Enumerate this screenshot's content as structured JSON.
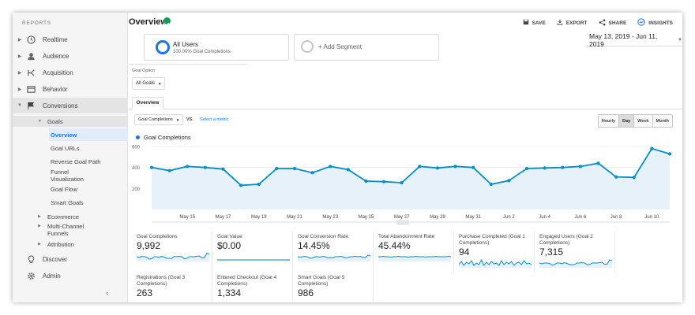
{
  "sidebar": {
    "heading": "REPORTS",
    "nav": [
      {
        "label": "Realtime",
        "icon": "clock-icon"
      },
      {
        "label": "Audience",
        "icon": "person-icon"
      },
      {
        "label": "Acquisition",
        "icon": "fork-icon"
      },
      {
        "label": "Behavior",
        "icon": "window-icon"
      },
      {
        "label": "Conversions",
        "icon": "flag-icon"
      }
    ],
    "goals": {
      "label": "Goals",
      "items": [
        "Overview",
        "Goal URLs",
        "Reverse Goal Path",
        "Funnel Visualization",
        "Goal Flow",
        "Smart Goals"
      ]
    },
    "subgroups": [
      "Ecommerce",
      "Multi-Channel Funnels",
      "Attribution"
    ],
    "bottom": [
      {
        "label": "Discover",
        "icon": "lightbulb-icon"
      },
      {
        "label": "Admin",
        "icon": "gear-icon"
      }
    ],
    "collapse": "‹"
  },
  "header": {
    "title": "Overview",
    "actions": [
      "SAVE",
      "EXPORT",
      "SHARE",
      "INSIGHTS"
    ]
  },
  "segments": {
    "active_title": "All Users",
    "active_sub": "100.00% Goal Completions",
    "add": "+ Add Segment"
  },
  "date_range": "May 13, 2019 - Jun 11, 2019",
  "goal_option": {
    "label": "Goal Option:",
    "value": "All Goals"
  },
  "tab": "Overview",
  "controls": {
    "metric": "Goal Completions",
    "vs": "VS.",
    "select_metric": "Select a metric",
    "granularity": [
      "Hourly",
      "Day",
      "Week",
      "Month"
    ],
    "selected_granularity": "Day"
  },
  "colors": {
    "accent": "#1a73e8",
    "line": "#058dc7",
    "fill": "#e6f1f9",
    "ok": "#0f9d58"
  },
  "chart_data": {
    "type": "area",
    "series": [
      {
        "name": "Goal Completions",
        "values": [
          400,
          370,
          410,
          400,
          385,
          230,
          240,
          390,
          390,
          350,
          410,
          380,
          270,
          265,
          255,
          410,
          395,
          410,
          400,
          240,
          275,
          390,
          395,
          400,
          410,
          440,
          310,
          305,
          580,
          530
        ]
      }
    ],
    "x_tick_labels": [
      "May 15",
      "May 17",
      "May 19",
      "May 21",
      "May 23",
      "May 25",
      "May 27",
      "May 29",
      "May 31",
      "Jun 2",
      "Jun 4",
      "Jun 6",
      "Jun 8",
      "Jun 10"
    ],
    "y_ticks": [
      200,
      400,
      600
    ],
    "ylim": [
      0,
      600
    ],
    "grid": true
  },
  "scorecards": [
    {
      "name": "Goal Completions",
      "value": "9,992",
      "spark": [
        0.5,
        0.4,
        0.55,
        0.5,
        0.45,
        0.2,
        0.25,
        0.5,
        0.5,
        0.4,
        0.55,
        0.45,
        0.3,
        0.3,
        0.28,
        0.55,
        0.5,
        0.55,
        0.5,
        0.25,
        0.3,
        0.5,
        0.5,
        0.5,
        0.55,
        0.6,
        0.35,
        0.35,
        0.95,
        0.85
      ]
    },
    {
      "name": "Goal Value",
      "value": "$0.00",
      "spark": [
        0.1,
        0.1,
        0.1,
        0.1,
        0.1,
        0.1,
        0.1,
        0.1,
        0.1,
        0.1
      ]
    },
    {
      "name": "Goal Conversion Rate",
      "value": "14.45%",
      "spark": [
        0.5,
        0.45,
        0.5,
        0.55,
        0.45,
        0.3,
        0.35,
        0.5,
        0.5,
        0.45,
        0.55,
        0.5,
        0.35,
        0.4,
        0.35,
        0.5,
        0.5,
        0.55,
        0.5,
        0.35,
        0.4,
        0.5,
        0.5,
        0.55,
        0.5,
        0.55,
        0.4,
        0.4,
        0.7,
        0.65
      ]
    },
    {
      "name": "Total Abandonment Rate",
      "value": "45.44%",
      "spark": [
        0.5,
        0.5,
        0.55,
        0.5,
        0.5,
        0.45,
        0.5,
        0.5,
        0.55,
        0.5,
        0.5,
        0.5,
        0.45,
        0.5,
        0.5,
        0.55,
        0.5,
        0.5,
        0.5,
        0.45,
        0.5,
        0.5,
        0.5,
        0.55,
        0.5,
        0.5,
        0.5,
        0.5,
        0.55,
        0.5
      ]
    },
    {
      "name": "Purchase Completed (Goal 1 Completions)",
      "value": "94",
      "spark": [
        0.3,
        0.7,
        0.2,
        0.6,
        0.4,
        0.8,
        0.2,
        0.5,
        0.3,
        0.9,
        0.2,
        0.6,
        0.3,
        0.7,
        0.4,
        0.5,
        0.2,
        0.8,
        0.3,
        0.6,
        0.4,
        0.7,
        0.2,
        0.5,
        0.6,
        0.3,
        0.8,
        0.4,
        0.5,
        0.3
      ]
    },
    {
      "name": "Engaged Users (Goal 2 Completions)",
      "value": "7,315",
      "spark": [
        0.5,
        0.4,
        0.5,
        0.5,
        0.45,
        0.25,
        0.3,
        0.5,
        0.5,
        0.4,
        0.55,
        0.45,
        0.3,
        0.3,
        0.3,
        0.5,
        0.5,
        0.55,
        0.5,
        0.3,
        0.3,
        0.5,
        0.5,
        0.5,
        0.55,
        0.6,
        0.35,
        0.35,
        0.9,
        0.8
      ]
    },
    {
      "name": "Registrations (Goal 3 Completions)",
      "value": "263",
      "spark": []
    },
    {
      "name": "Entered Checkout (Goal 4 Completions)",
      "value": "1,334",
      "spark": []
    },
    {
      "name": "Smart Goals (Goal 5 Completions)",
      "value": "986",
      "spark": []
    }
  ]
}
